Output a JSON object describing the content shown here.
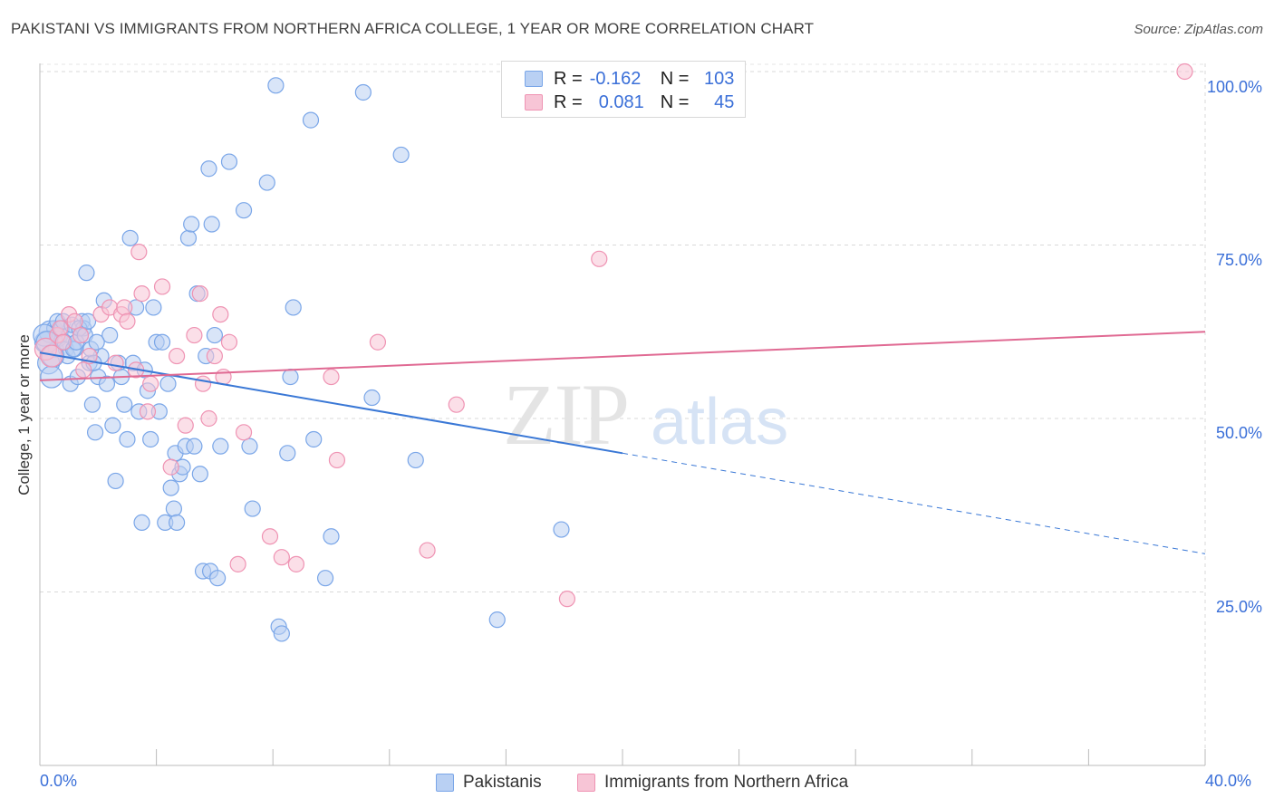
{
  "title": "PAKISTANI VS IMMIGRANTS FROM NORTHERN AFRICA COLLEGE, 1 YEAR OR MORE CORRELATION CHART",
  "source": "Source: ZipAtlas.com",
  "watermark": {
    "zip": "ZIP",
    "atlas": "atlas"
  },
  "legend": {
    "rows": [
      {
        "r_label": "R =",
        "r_value": "-0.162",
        "n_label": "N =",
        "n_value": "103",
        "color": "#7aa6e8",
        "fill": "#b9d0f3"
      },
      {
        "r_label": "R =",
        "r_value": "0.081",
        "n_label": "N =",
        "n_value": "45",
        "color": "#ef93b3",
        "fill": "#f7c5d6"
      }
    ]
  },
  "bottom_legend": {
    "items": [
      {
        "label": "Pakistanis",
        "color": "#7aa6e8",
        "fill": "#b9d0f3"
      },
      {
        "label": "Immigrants from Northern Africa",
        "color": "#ef93b3",
        "fill": "#f7c5d6"
      }
    ]
  },
  "axes": {
    "x_label_left": "0.0%",
    "x_label_right": "40.0%",
    "y_tick_labels": [
      "100.0%",
      "75.0%",
      "50.0%",
      "25.0%"
    ],
    "ylabel": "College, 1 year or more"
  },
  "chart_data": {
    "type": "scatter",
    "title": "PAKISTANI VS IMMIGRANTS FROM NORTHERN AFRICA COLLEGE, 1 YEAR OR MORE CORRELATION CHART",
    "xlabel": "",
    "ylabel": "College, 1 year or more",
    "xlim": [
      0,
      40
    ],
    "ylim": [
      0,
      102.5
    ],
    "y_ticks": [
      25,
      50,
      75,
      100
    ],
    "grid": true,
    "series": [
      {
        "name": "Pakistanis",
        "color": "#7aa6e8",
        "fill": "#b9d0f3",
        "trend_color": "#3a78d6",
        "points": [
          [
            0.2,
            61
          ],
          [
            0.3,
            58
          ],
          [
            0.35,
            62.5
          ],
          [
            0.4,
            56
          ],
          [
            0.5,
            63
          ],
          [
            0.55,
            60
          ],
          [
            0.6,
            64
          ],
          [
            0.65,
            61.5
          ],
          [
            0.7,
            62
          ],
          [
            0.75,
            63
          ],
          [
            0.8,
            64
          ],
          [
            0.9,
            60
          ],
          [
            0.95,
            59
          ],
          [
            1.0,
            62
          ],
          [
            1.05,
            55
          ],
          [
            1.1,
            63.5
          ],
          [
            1.2,
            60
          ],
          [
            1.3,
            56
          ],
          [
            1.4,
            62
          ],
          [
            1.45,
            64
          ],
          [
            1.5,
            63
          ],
          [
            1.6,
            71
          ],
          [
            1.7,
            58
          ],
          [
            1.8,
            52
          ],
          [
            1.9,
            48
          ],
          [
            2.0,
            56
          ],
          [
            2.1,
            59
          ],
          [
            2.2,
            67
          ],
          [
            2.3,
            55
          ],
          [
            2.4,
            62
          ],
          [
            2.5,
            49
          ],
          [
            2.6,
            41
          ],
          [
            2.7,
            58
          ],
          [
            2.8,
            56
          ],
          [
            2.9,
            52
          ],
          [
            3.0,
            47
          ],
          [
            3.1,
            76
          ],
          [
            3.2,
            58
          ],
          [
            3.3,
            66
          ],
          [
            3.4,
            51
          ],
          [
            3.5,
            35
          ],
          [
            3.6,
            57
          ],
          [
            3.7,
            54
          ],
          [
            3.8,
            47
          ],
          [
            3.9,
            66
          ],
          [
            4.0,
            61
          ],
          [
            4.1,
            51
          ],
          [
            4.2,
            61
          ],
          [
            4.3,
            35
          ],
          [
            4.4,
            55
          ],
          [
            4.5,
            40
          ],
          [
            4.6,
            37
          ],
          [
            4.65,
            45
          ],
          [
            4.7,
            35
          ],
          [
            4.8,
            42
          ],
          [
            4.9,
            43
          ],
          [
            5.0,
            46
          ],
          [
            5.1,
            76
          ],
          [
            5.2,
            78
          ],
          [
            5.3,
            46
          ],
          [
            5.4,
            68
          ],
          [
            5.5,
            42
          ],
          [
            5.6,
            28
          ],
          [
            5.7,
            59
          ],
          [
            5.8,
            86
          ],
          [
            5.85,
            28
          ],
          [
            5.9,
            78
          ],
          [
            6.0,
            62
          ],
          [
            6.1,
            27
          ],
          [
            6.2,
            46
          ],
          [
            6.5,
            87
          ],
          [
            7.0,
            80
          ],
          [
            7.2,
            46
          ],
          [
            7.3,
            37
          ],
          [
            7.8,
            84
          ],
          [
            8.1,
            98
          ],
          [
            8.2,
            20
          ],
          [
            8.3,
            19
          ],
          [
            8.5,
            45
          ],
          [
            8.6,
            56
          ],
          [
            8.7,
            66
          ],
          [
            9.3,
            93
          ],
          [
            9.4,
            47
          ],
          [
            9.8,
            27
          ],
          [
            10.0,
            33
          ],
          [
            11.1,
            97
          ],
          [
            11.4,
            53
          ],
          [
            12.4,
            88
          ],
          [
            12.9,
            44
          ],
          [
            15.7,
            21
          ],
          [
            17.9,
            34
          ],
          [
            0.15,
            62
          ],
          [
            0.25,
            61
          ],
          [
            0.45,
            59
          ],
          [
            0.85,
            61
          ],
          [
            1.15,
            60
          ],
          [
            1.25,
            61
          ],
          [
            1.35,
            63
          ],
          [
            1.55,
            62
          ],
          [
            1.65,
            64
          ],
          [
            1.75,
            60
          ],
          [
            1.85,
            58
          ],
          [
            1.95,
            61
          ]
        ],
        "trend": {
          "x0": 0,
          "y0": 59.5,
          "x1": 20,
          "y1": 45,
          "dash_x1": 40,
          "dash_y1": 30.5
        }
      },
      {
        "name": "Immigrants from Northern Africa",
        "color": "#ef93b3",
        "fill": "#f7c5d6",
        "trend_color": "#e06a93",
        "points": [
          [
            0.2,
            60
          ],
          [
            0.4,
            59
          ],
          [
            0.6,
            62
          ],
          [
            0.7,
            63
          ],
          [
            0.8,
            61
          ],
          [
            1.0,
            65
          ],
          [
            1.2,
            64
          ],
          [
            1.4,
            62
          ],
          [
            1.5,
            57
          ],
          [
            1.7,
            59
          ],
          [
            2.1,
            65
          ],
          [
            2.4,
            66
          ],
          [
            2.6,
            58
          ],
          [
            2.8,
            65
          ],
          [
            2.9,
            66
          ],
          [
            3.0,
            64
          ],
          [
            3.3,
            57
          ],
          [
            3.4,
            74
          ],
          [
            3.5,
            68
          ],
          [
            3.7,
            51
          ],
          [
            3.8,
            55
          ],
          [
            4.2,
            69
          ],
          [
            4.5,
            43
          ],
          [
            4.7,
            59
          ],
          [
            5.0,
            49
          ],
          [
            5.3,
            62
          ],
          [
            5.5,
            68
          ],
          [
            5.6,
            55
          ],
          [
            5.8,
            50
          ],
          [
            6.0,
            59
          ],
          [
            6.2,
            65
          ],
          [
            6.3,
            56
          ],
          [
            6.5,
            61
          ],
          [
            6.8,
            29
          ],
          [
            7.0,
            48
          ],
          [
            7.9,
            33
          ],
          [
            8.3,
            30
          ],
          [
            8.8,
            29
          ],
          [
            10.0,
            56
          ],
          [
            10.2,
            44
          ],
          [
            11.6,
            61
          ],
          [
            13.3,
            31
          ],
          [
            14.3,
            52
          ],
          [
            18.1,
            24
          ],
          [
            19.2,
            73
          ]
        ],
        "trend": {
          "x0": 0,
          "y0": 55.5,
          "x1": 40,
          "y1": 62.5
        }
      }
    ],
    "extra_point": {
      "series": "Immigrants from Northern Africa",
      "x": 39.3,
      "y": 100
    }
  }
}
